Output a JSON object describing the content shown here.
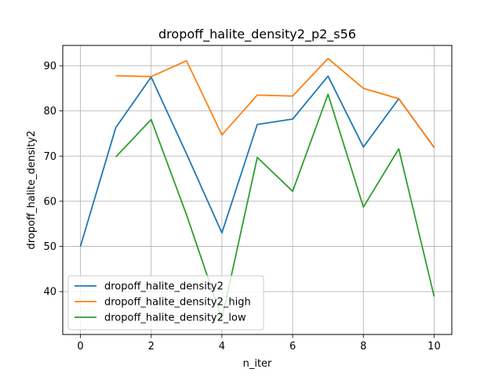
{
  "chart_data": {
    "type": "line",
    "title": "dropoff_halite_density2_p2_s56",
    "xlabel": "n_iter",
    "ylabel": "dropoff_halite_density2",
    "xlim": [
      -0.5,
      10.5
    ],
    "ylim": [
      30.5,
      94.5
    ],
    "xticks": [
      0,
      2,
      4,
      6,
      8,
      10
    ],
    "yticks": [
      40,
      50,
      60,
      70,
      80,
      90
    ],
    "grid": true,
    "legend_position": "lower-left",
    "series": [
      {
        "name": "dropoff_halite_density2",
        "color": "#1f77b4",
        "x": [
          0,
          1,
          2,
          3,
          4,
          5,
          6,
          7,
          8,
          9,
          10
        ],
        "values": [
          50.0,
          76.3,
          87.5,
          70.5,
          53.0,
          77.0,
          78.2,
          87.7,
          72.0,
          82.7,
          71.9
        ]
      },
      {
        "name": "dropoff_halite_density2_high",
        "color": "#ff7f0e",
        "x": [
          1,
          2,
          3,
          4,
          5,
          6,
          7,
          8,
          9,
          10
        ],
        "values": [
          87.8,
          87.6,
          91.1,
          74.7,
          83.5,
          83.3,
          91.6,
          85.0,
          82.7,
          71.9
        ]
      },
      {
        "name": "dropoff_halite_density2_low",
        "color": "#2ca02c",
        "x": [
          1,
          2,
          3,
          4,
          5,
          6,
          7,
          8,
          9,
          10
        ],
        "values": [
          69.8,
          78.1,
          57.0,
          34.0,
          69.7,
          62.2,
          83.7,
          58.7,
          71.6,
          38.9
        ]
      }
    ]
  }
}
